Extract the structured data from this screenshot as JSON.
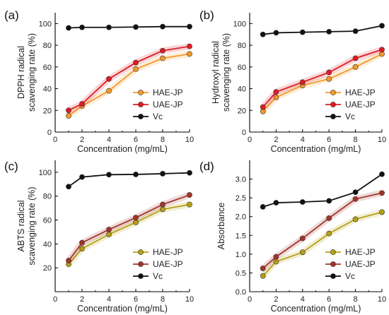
{
  "chart_data": [
    {
      "panel": "(a)",
      "type": "line",
      "xlabel": "Concentration (mg/mL)",
      "ylabel": [
        "DPPH radical",
        "scavenging rate (%)"
      ],
      "xlim": [
        0,
        10
      ],
      "ylim": [
        0,
        110
      ],
      "xticks": [
        0,
        2,
        4,
        6,
        8,
        10
      ],
      "yticks": [
        0,
        20,
        40,
        60,
        80,
        100
      ],
      "x": [
        1,
        2,
        4,
        6,
        8,
        10
      ],
      "legend_position": "bottom-right",
      "series": [
        {
          "name": "HAE-JP",
          "color": "#f39a2a",
          "values": [
            15,
            24,
            38,
            58,
            68,
            72
          ]
        },
        {
          "name": "UAE-JP",
          "color": "#e01b24",
          "values": [
            20,
            26,
            49,
            64,
            75,
            79
          ]
        },
        {
          "name": "Vc",
          "color": "#111111",
          "values": [
            96,
            96.5,
            96.5,
            96.8,
            97.2,
            97.2
          ]
        }
      ]
    },
    {
      "panel": "(b)",
      "type": "line",
      "xlabel": "Concentration (mg/mL)",
      "ylabel": [
        "Hydroxyl radical",
        "scavenging rate (%)"
      ],
      "xlim": [
        0,
        10
      ],
      "ylim": [
        0,
        110
      ],
      "xticks": [
        0,
        2,
        4,
        6,
        8,
        10
      ],
      "yticks": [
        0,
        20,
        40,
        60,
        80,
        100
      ],
      "x": [
        1,
        2,
        4,
        6,
        8,
        10
      ],
      "legend_position": "bottom-right",
      "series": [
        {
          "name": "HAE-JP",
          "color": "#f39a2a",
          "values": [
            19,
            32,
            43,
            49,
            60,
            72
          ]
        },
        {
          "name": "UAE-JP",
          "color": "#e01b24",
          "values": [
            23,
            37,
            46,
            55,
            68,
            76
          ]
        },
        {
          "name": "Vc",
          "color": "#111111",
          "values": [
            90,
            91.5,
            92,
            92.5,
            93,
            98
          ]
        }
      ]
    },
    {
      "panel": "(c)",
      "type": "line",
      "xlabel": "Concentration (mg/mL)",
      "ylabel": [
        "ABTS radical",
        "scavenging rate (%)"
      ],
      "xlim": [
        0,
        10
      ],
      "ylim": [
        0,
        110
      ],
      "xticks": [
        0,
        2,
        4,
        6,
        8,
        10
      ],
      "yticks": [
        20,
        40,
        60,
        80,
        100
      ],
      "x": [
        1,
        2,
        4,
        6,
        8,
        10
      ],
      "legend_position": "bottom-right",
      "series": [
        {
          "name": "HAE-JP",
          "color": "#b5a015",
          "values": [
            23,
            36,
            48,
            58,
            69,
            73
          ]
        },
        {
          "name": "UAE-JP",
          "color": "#a3342a",
          "values": [
            26,
            41,
            52,
            62,
            73,
            81
          ]
        },
        {
          "name": "Vc",
          "color": "#111111",
          "values": [
            88,
            96,
            98,
            98.2,
            98.8,
            99.5
          ]
        }
      ]
    },
    {
      "panel": "(d)",
      "type": "line",
      "xlabel": "Concentration (mg/mL)",
      "ylabel": [
        "Absorbance"
      ],
      "xlim": [
        0,
        10
      ],
      "ylim": [
        0,
        3.5
      ],
      "xticks": [
        0,
        2,
        4,
        6,
        8,
        10
      ],
      "yticks": [
        "0.0",
        "0.5",
        "1.0",
        "1.5",
        "2.0",
        "2.5",
        "3.0"
      ],
      "x": [
        1,
        2,
        4,
        6,
        8,
        10
      ],
      "legend_position": "bottom-right",
      "series": [
        {
          "name": "HAE-JP",
          "color": "#b5a015",
          "values": [
            0.42,
            0.8,
            1.05,
            1.55,
            1.93,
            2.12
          ]
        },
        {
          "name": "UAE-JP",
          "color": "#a3342a",
          "values": [
            0.62,
            0.93,
            1.42,
            1.96,
            2.47,
            2.63
          ]
        },
        {
          "name": "Vc",
          "color": "#111111",
          "values": [
            2.26,
            2.37,
            2.39,
            2.42,
            2.65,
            3.13
          ]
        }
      ]
    }
  ]
}
